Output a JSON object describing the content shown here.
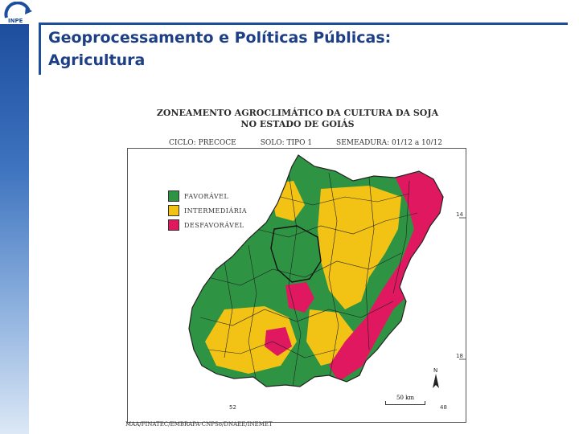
{
  "slide": {
    "title_line1": "Geoprocessamento e Políticas Públicas:",
    "title_line2": "Agricultura"
  },
  "logo": {
    "icon": "inpe-logo-icon",
    "text": "INPE"
  },
  "map": {
    "heading_line1": "ZONEAMENTO AGROCLIMÁTICO DA CULTURA DA SOJA",
    "heading_line2": "NO ESTADO DE GOIÁS",
    "cycle": "CICLO: PRECOCE",
    "soil": "SOLO: TIPO 1",
    "sowing": "SEMEADURA: 01/12 a 10/12",
    "legend": [
      {
        "label": "FAVORÁVEL",
        "color": "#2e9443"
      },
      {
        "label": "INTERMEDIÁRIA",
        "color": "#f2c314"
      },
      {
        "label": "DESFAVORÁVEL",
        "color": "#e0185f"
      }
    ],
    "lat_14": "14",
    "lat_18": "18",
    "lon_52": "52",
    "lon_48": "48",
    "scale_label": "50 km",
    "north_label": "N",
    "credit": "MAA/FINATEC/EMBRAPA-CNPSo/DNAEE/INEMET"
  }
}
